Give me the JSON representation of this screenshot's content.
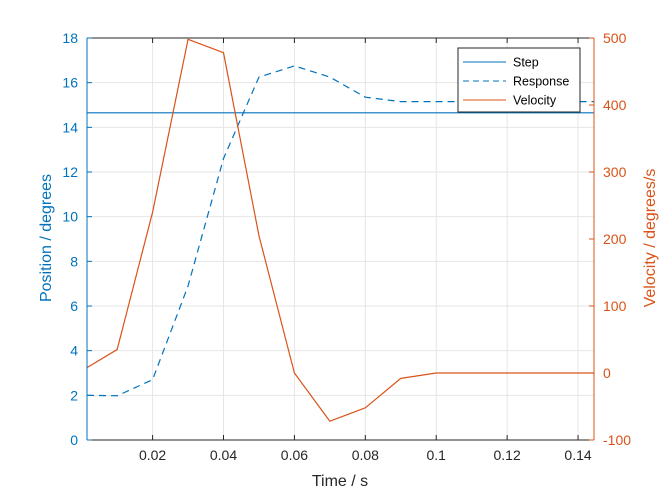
{
  "chart_data": {
    "type": "line",
    "xlabel": "Time / s",
    "ylabel_left": "Position / degrees",
    "ylabel_right": "Velocity / degrees/s",
    "xlim": [
      0.0015,
      0.1445
    ],
    "ylim_left": [
      0,
      18
    ],
    "ylim_right": [
      -100,
      500
    ],
    "x_ticks": [
      "0.02",
      "0.04",
      "0.06",
      "0.08",
      "0.1",
      "0.12",
      "0.14"
    ],
    "y_left_ticks": [
      "0",
      "2",
      "4",
      "6",
      "8",
      "10",
      "12",
      "14",
      "16",
      "18"
    ],
    "y_right_ticks": [
      "-100",
      "0",
      "100",
      "200",
      "300",
      "400",
      "500"
    ],
    "grid": true,
    "legend_position": "top-right",
    "colors": {
      "left_axis": "#0072BD",
      "right_axis": "#D95319",
      "grid": "#e6e6e6",
      "axes": "#262626"
    },
    "series": [
      {
        "name": "Step",
        "axis": "left",
        "style": "solid",
        "x": [
          0.0015,
          0.1445
        ],
        "y": [
          14.65,
          14.65
        ]
      },
      {
        "name": "Response",
        "axis": "left",
        "style": "dashed",
        "x": [
          0.0015,
          0.01,
          0.02,
          0.03,
          0.04,
          0.05,
          0.06,
          0.07,
          0.08,
          0.09,
          0.1,
          0.11,
          0.12,
          0.13,
          0.14,
          0.1445
        ],
        "y": [
          2.0,
          1.98,
          2.7,
          6.9,
          12.6,
          16.25,
          16.75,
          16.25,
          15.35,
          15.15,
          15.15,
          15.15,
          15.15,
          15.15,
          15.15,
          15.15
        ]
      },
      {
        "name": "Velocity",
        "axis": "right",
        "style": "solid",
        "x": [
          0.0015,
          0.01,
          0.02,
          0.03,
          0.04,
          0.05,
          0.06,
          0.07,
          0.08,
          0.09,
          0.1,
          0.11,
          0.12,
          0.13,
          0.14,
          0.1445
        ],
        "y": [
          8,
          35,
          240,
          498,
          478,
          205,
          0,
          -72,
          -52,
          -8,
          0,
          0,
          0,
          0,
          0,
          0
        ]
      }
    ]
  }
}
